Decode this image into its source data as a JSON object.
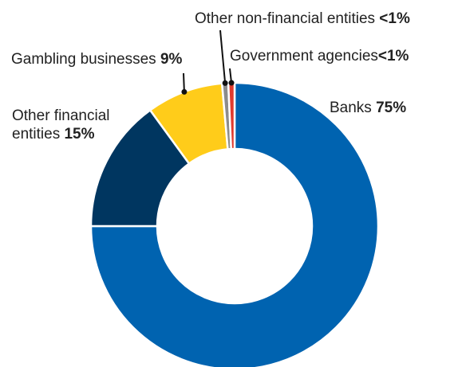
{
  "chart_data": {
    "type": "pie",
    "donut": true,
    "slices": [
      {
        "name": "Banks",
        "label": "Banks",
        "value_label": "75%",
        "value": 75,
        "color": "#0063b0"
      },
      {
        "name": "Other financial entities",
        "label_line1": "Other financial",
        "label_line2": "entities",
        "value_label": "15%",
        "value": 15,
        "color": "#003660"
      },
      {
        "name": "Gambling businesses",
        "label": "Gambling businesses",
        "value_label": "9%",
        "value": 8.6,
        "color": "#ffcc1a"
      },
      {
        "name": "Other non-financial entities",
        "label": "Other non-financial entities",
        "value_label": "<1%",
        "value": 0.7,
        "color": "#8c8c8c"
      },
      {
        "name": "Government agencies",
        "label": "Government agencies",
        "value_label": "<1%",
        "value": 0.7,
        "color": "#e03a2e"
      }
    ]
  }
}
